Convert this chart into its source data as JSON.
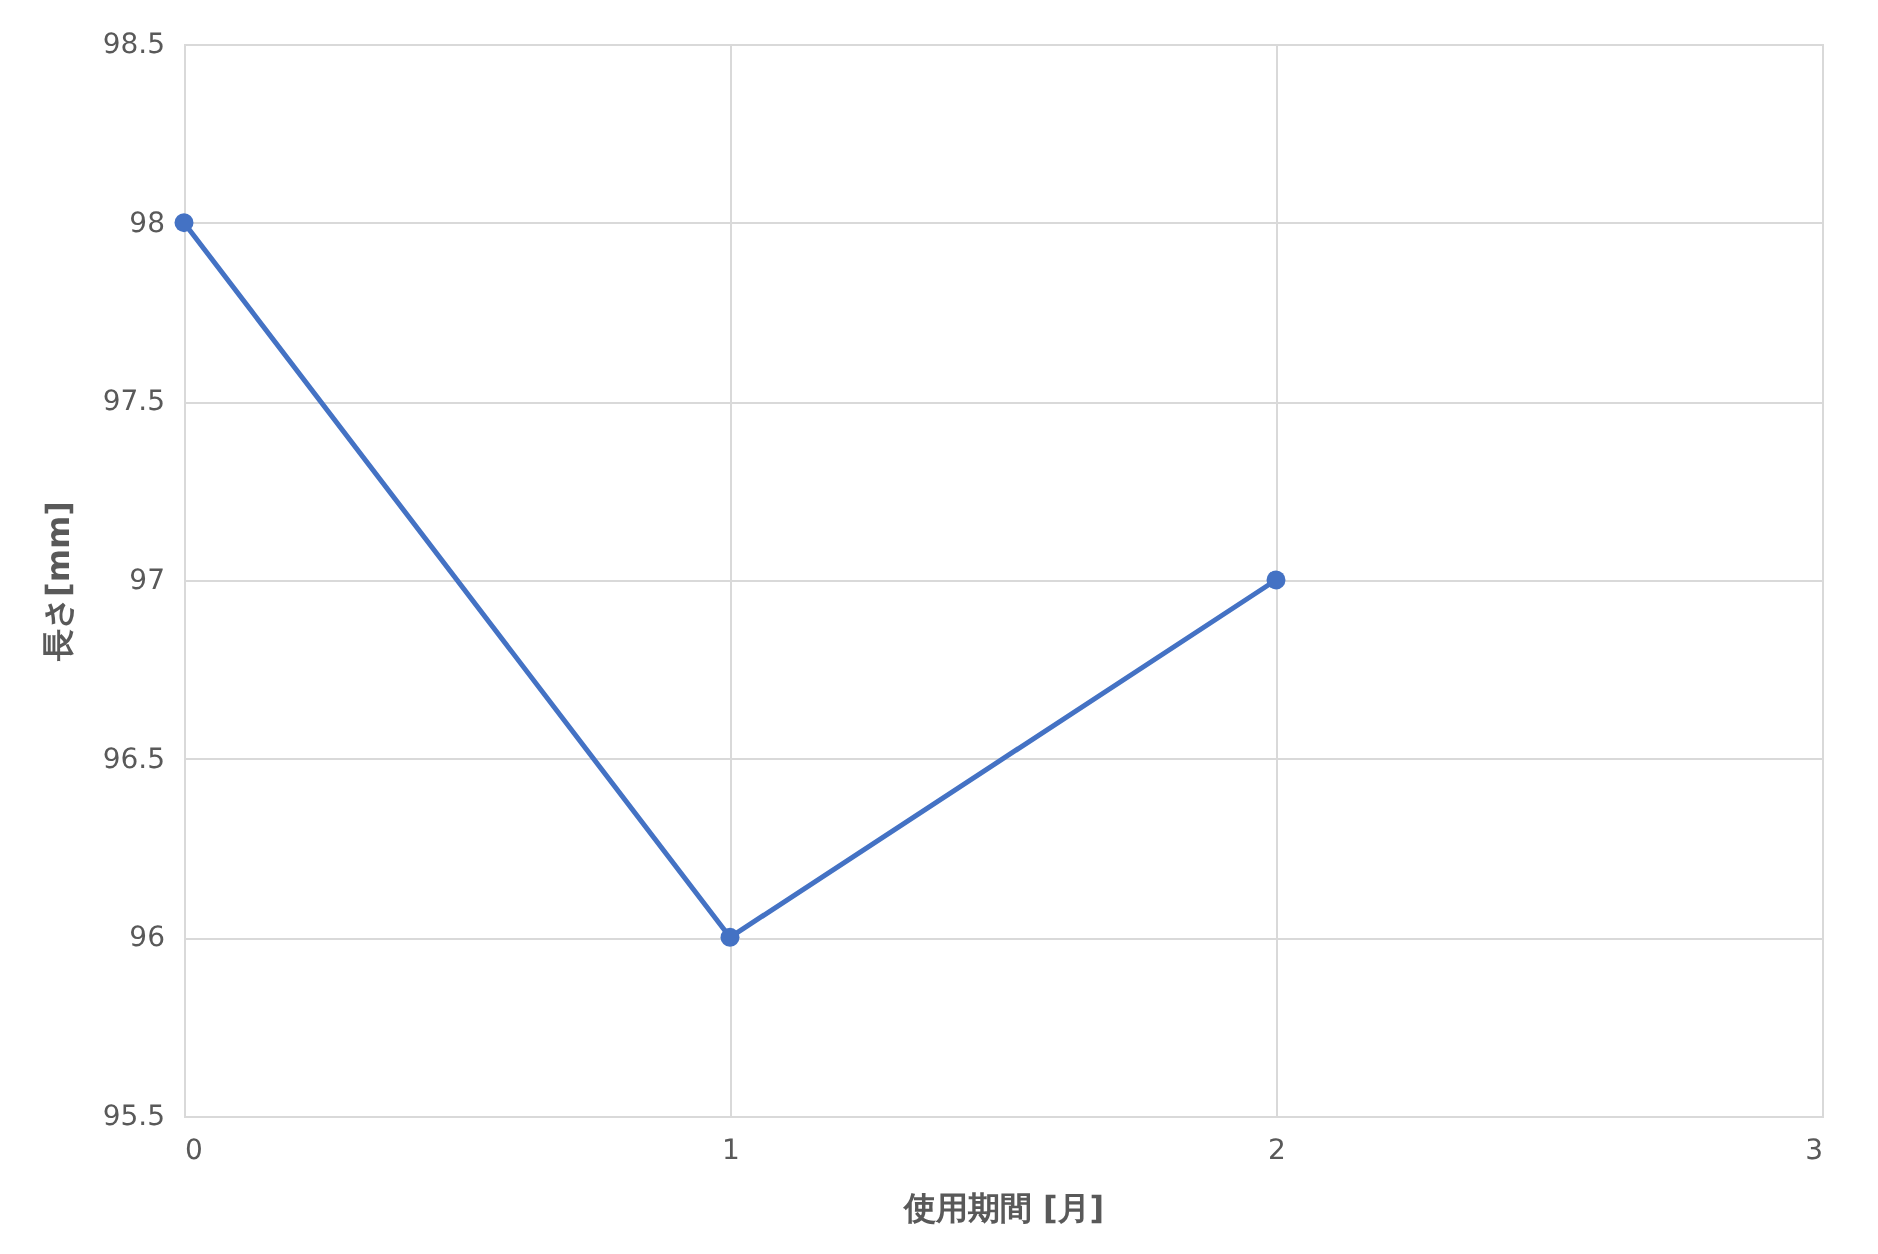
{
  "chart_data": {
    "type": "line",
    "xlabel": "使用期間 [月]",
    "ylabel": "長さ[mm]",
    "x": [
      0,
      1,
      2
    ],
    "series": [
      {
        "color": "#4472c4",
        "values": [
          98,
          96,
          97
        ]
      }
    ],
    "xlim": [
      0,
      3
    ],
    "xticks": [
      0,
      1,
      2,
      3
    ],
    "ylim": [
      95.5,
      98.5
    ],
    "yticks": [
      95.5,
      96,
      96.5,
      97,
      97.5,
      98,
      98.5
    ],
    "grid": true,
    "marker": "circle",
    "line_style": "solid"
  }
}
